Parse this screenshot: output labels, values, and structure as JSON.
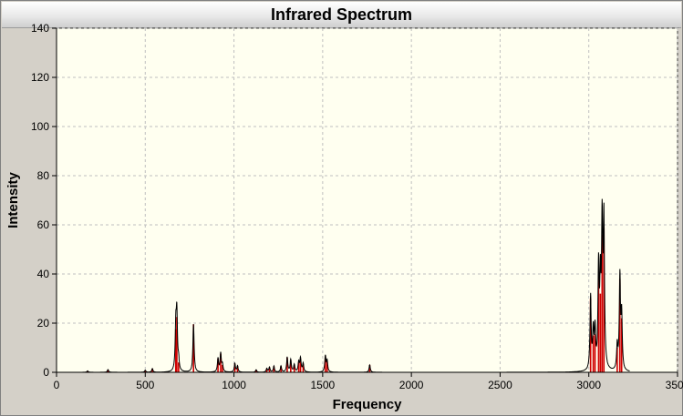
{
  "window": {
    "title": "Infrared Spectrum"
  },
  "colors": {
    "background": "#d4d0c8",
    "plot_background": "#fffff0",
    "grid": "#bfbfbf",
    "stick": "#d00000",
    "curve": "#000000"
  },
  "chart_data": {
    "type": "line",
    "title": "Infrared Spectrum",
    "xlabel": "Frequency",
    "ylabel": "Intensity",
    "xlim": [
      0,
      3500
    ],
    "ylim": [
      0,
      140
    ],
    "xticks": [
      0,
      500,
      1000,
      1500,
      2000,
      2500,
      3000,
      3500
    ],
    "yticks": [
      0,
      20,
      40,
      60,
      80,
      100,
      120,
      140
    ],
    "grid": true,
    "broadening_half_width": 4,
    "curve_range": [
      70,
      3230
    ],
    "series": [
      {
        "type": "stick",
        "x": [
          175,
          290,
          500,
          540,
          672,
          678,
          688,
          772,
          910,
          925,
          935,
          1005,
          1020,
          1125,
          1185,
          1200,
          1225,
          1265,
          1300,
          1320,
          1340,
          1365,
          1375,
          1390,
          1515,
          1525,
          1765,
          3010,
          3025,
          3035,
          3055,
          3065,
          3075,
          3085,
          3160,
          3175,
          3185
        ],
        "y": [
          0.6,
          1.1,
          0.8,
          1.5,
          17.5,
          22.5,
          4.0,
          19.5,
          5.5,
          7.5,
          3.0,
          3.5,
          2.5,
          1.0,
          1.5,
          2.0,
          2.5,
          2.5,
          6.0,
          5.0,
          3.0,
          4.0,
          5.5,
          3.5,
          6.5,
          4.5,
          3.0,
          30.0,
          15.0,
          15.5,
          40.0,
          32.0,
          56.0,
          59.0,
          10.0,
          38.0,
          22.0
        ]
      },
      {
        "type": "line",
        "x": [],
        "y": []
      }
    ]
  }
}
